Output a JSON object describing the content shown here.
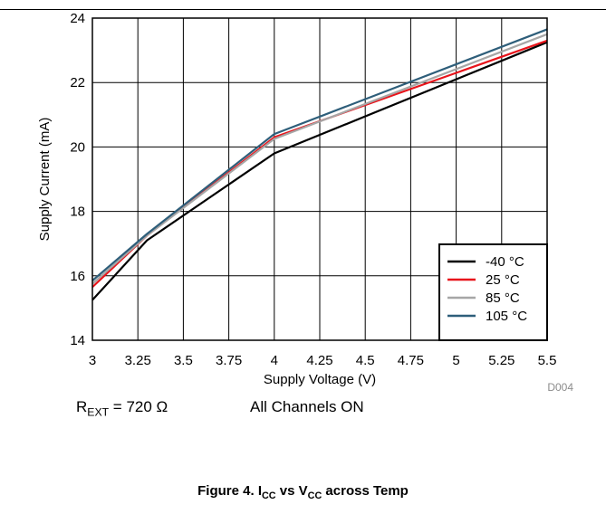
{
  "chart_data": {
    "type": "line",
    "xlabel": "Supply Voltage (V)",
    "ylabel": "Supply Current (mA)",
    "xlim": [
      3,
      5.5
    ],
    "ylim": [
      14,
      24
    ],
    "x_ticks": [
      "3",
      "3.25",
      "3.5",
      "3.75",
      "4",
      "4.25",
      "4.5",
      "4.75",
      "5",
      "5.25",
      "5.5"
    ],
    "y_ticks": [
      "14",
      "16",
      "18",
      "20",
      "22",
      "24"
    ],
    "grid": true,
    "legend_position": "bottom-right",
    "x": [
      3,
      3.3,
      4,
      5.5
    ],
    "series": [
      {
        "name": "-40 °C",
        "color": "#000000",
        "values": [
          15.25,
          17.1,
          19.8,
          23.25
        ]
      },
      {
        "name": "25 °C",
        "color": "#e8141b",
        "values": [
          15.65,
          17.25,
          20.3,
          23.3
        ]
      },
      {
        "name": "85 °C",
        "color": "#a6a6a6",
        "values": [
          15.75,
          17.25,
          20.25,
          23.5
        ]
      },
      {
        "name": "105 °C",
        "color": "#2e5e7a",
        "values": [
          15.85,
          17.3,
          20.4,
          23.65
        ]
      }
    ],
    "annotation": "D004"
  },
  "conditions": {
    "rext_prefix": "R",
    "rext_sub": "EXT",
    "rext_value": " = 720 Ω",
    "channels": "All Channels ON"
  },
  "caption": {
    "prefix": "Figure 4. I",
    "sub1": "CC",
    "middle": " vs V",
    "sub2": "CC",
    "suffix": " across Temp"
  }
}
